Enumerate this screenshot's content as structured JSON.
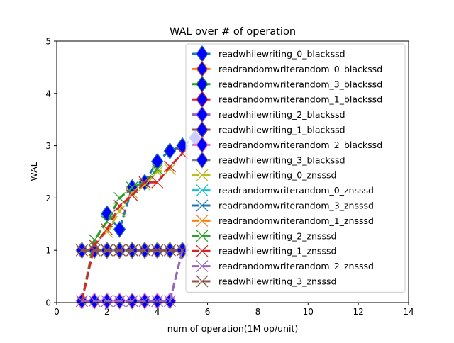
{
  "chart_data": {
    "type": "line",
    "title": "WAL over # of operation",
    "xlabel": "num of operation(1M op/unit)",
    "ylabel": "WAL",
    "xlim": [
      0,
      14
    ],
    "ylim": [
      0,
      5
    ],
    "xticks": [
      0,
      2,
      4,
      6,
      8,
      10,
      12,
      14
    ],
    "yticks": [
      0,
      1,
      2,
      3,
      4,
      5
    ],
    "grid": false,
    "legend_position": "top-right",
    "series": [
      {
        "name": "readwhilewriting_0_blackssd",
        "color": "#1f77b4",
        "marker": "diamond",
        "x": [
          2.0,
          2.5,
          3.0,
          3.5,
          4.0,
          4.5,
          5.0,
          5.5
        ],
        "y": [
          1.7,
          1.4,
          2.2,
          2.3,
          2.7,
          2.9,
          3.0,
          3.15
        ]
      },
      {
        "name": "readrandomwriterandom_0_blackssd",
        "color": "#ff7f0e",
        "marker": "diamond",
        "x": [
          1.0,
          1.5,
          2.0,
          2.5,
          3.0,
          3.5,
          4.0,
          4.5,
          5.0
        ],
        "y": [
          1.0,
          1.0,
          1.0,
          1.0,
          1.0,
          1.0,
          1.0,
          1.0,
          1.0
        ]
      },
      {
        "name": "readrandomwriterandom_3_blackssd",
        "color": "#2ca02c",
        "marker": "diamond",
        "x": [
          1.0,
          1.5,
          2.0,
          2.5,
          3.0,
          3.5,
          4.0,
          4.5,
          5.0
        ],
        "y": [
          1.0,
          1.0,
          1.0,
          1.0,
          1.0,
          1.0,
          1.0,
          1.0,
          1.0
        ]
      },
      {
        "name": "readrandomwriterandom_1_blackssd",
        "color": "#d62728",
        "marker": "diamond",
        "x": [
          1.0,
          1.5,
          2.0,
          2.5,
          3.0,
          3.5,
          4.0,
          4.5,
          5.0
        ],
        "y": [
          1.0,
          1.0,
          1.0,
          1.0,
          1.0,
          1.0,
          1.0,
          1.0,
          1.0
        ]
      },
      {
        "name": "readwhilewriting_2_blackssd",
        "color": "#9467bd",
        "marker": "diamond",
        "x": [
          1.0,
          1.5,
          2.0,
          2.5,
          3.0,
          3.5,
          4.0,
          4.5,
          5.0
        ],
        "y": [
          0.03,
          0.03,
          0.03,
          0.03,
          0.03,
          0.03,
          0.03,
          0.03,
          1.0
        ]
      },
      {
        "name": "readwhilewriting_1_blackssd",
        "color": "#8c564b",
        "marker": "diamond",
        "x": [
          1.0,
          1.5,
          2.0,
          2.5,
          3.0,
          3.5,
          4.0,
          4.5,
          5.0
        ],
        "y": [
          1.0,
          1.0,
          1.0,
          1.0,
          1.0,
          1.0,
          1.0,
          1.0,
          1.0
        ]
      },
      {
        "name": "readrandomwriterandom_2_blackssd",
        "color": "#e377c2",
        "marker": "diamond",
        "x": [
          1.0,
          1.5,
          2.0,
          2.5,
          3.0,
          3.5,
          4.0,
          4.5,
          5.0
        ],
        "y": [
          0.03,
          0.03,
          0.03,
          0.03,
          0.03,
          0.03,
          0.03,
          0.03,
          1.0
        ]
      },
      {
        "name": "readwhilewriting_3_blackssd",
        "color": "#7f7f7f",
        "marker": "diamond",
        "x": [
          1.0,
          1.5,
          2.0,
          2.5,
          3.0,
          3.5,
          4.0,
          4.5,
          5.0
        ],
        "y": [
          1.0,
          1.0,
          1.0,
          1.0,
          1.0,
          1.0,
          1.0,
          1.0,
          1.0
        ]
      },
      {
        "name": "readwhilewriting_0_znsssd",
        "color": "#bcbd22",
        "marker": "x",
        "x": [
          2.0,
          2.5,
          3.0,
          3.5,
          4.0,
          4.5
        ],
        "y": [
          1.35,
          1.75,
          2.1,
          2.25,
          2.5,
          2.55
        ]
      },
      {
        "name": "readrandomwriterandom_0_znsssd",
        "color": "#17becf",
        "marker": "x",
        "x": [
          1.0,
          1.5,
          2.0,
          2.5,
          3.0,
          3.5,
          4.0,
          4.5
        ],
        "y": [
          1.0,
          1.0,
          1.0,
          1.0,
          1.0,
          1.0,
          1.0,
          1.0
        ]
      },
      {
        "name": "readrandomwriterandom_3_znsssd",
        "color": "#1f77b4",
        "marker": "x",
        "x": [
          1.0,
          1.5,
          2.0,
          2.5,
          3.0,
          3.5,
          4.0,
          4.5
        ],
        "y": [
          1.0,
          1.0,
          1.0,
          1.0,
          1.0,
          1.0,
          1.0,
          1.0
        ]
      },
      {
        "name": "readrandomwriterandom_1_znsssd",
        "color": "#ff7f0e",
        "marker": "x",
        "x": [
          1.0,
          1.5,
          2.0,
          2.5,
          3.0,
          3.5,
          4.0,
          4.5
        ],
        "y": [
          1.0,
          1.0,
          1.0,
          1.0,
          1.0,
          1.0,
          1.0,
          1.0
        ]
      },
      {
        "name": "readwhilewriting_2_znsssd",
        "color": "#2ca02c",
        "marker": "x",
        "x": [
          1.0,
          1.5,
          2.0,
          2.5,
          3.0,
          3.5,
          4.0
        ],
        "y": [
          0.03,
          1.2,
          1.55,
          2.0,
          2.2,
          2.3,
          2.55
        ]
      },
      {
        "name": "readwhilewriting_1_znsssd",
        "color": "#d62728",
        "marker": "x",
        "x": [
          1.0,
          1.5,
          2.0,
          2.5,
          3.0,
          3.5,
          4.0,
          4.5,
          5.0
        ],
        "y": [
          0.03,
          1.1,
          1.4,
          1.85,
          2.05,
          2.3,
          2.3,
          2.6,
          2.85
        ]
      },
      {
        "name": "readrandomwriterandom_2_znsssd",
        "color": "#9467bd",
        "marker": "x",
        "x": [
          1.0,
          1.5,
          2.0,
          2.5,
          3.0,
          3.5,
          4.0,
          4.5,
          5.0
        ],
        "y": [
          0.03,
          0.03,
          0.03,
          0.03,
          0.03,
          0.03,
          0.03,
          0.03,
          1.0
        ]
      },
      {
        "name": "readwhilewriting_3_znsssd",
        "color": "#8c564b",
        "marker": "x",
        "x": [
          1.0,
          1.5,
          2.0,
          2.5,
          3.0,
          3.5,
          4.0,
          4.5,
          5.0
        ],
        "y": [
          1.0,
          1.0,
          1.0,
          1.0,
          1.0,
          1.0,
          1.0,
          1.0,
          1.0
        ]
      }
    ]
  }
}
